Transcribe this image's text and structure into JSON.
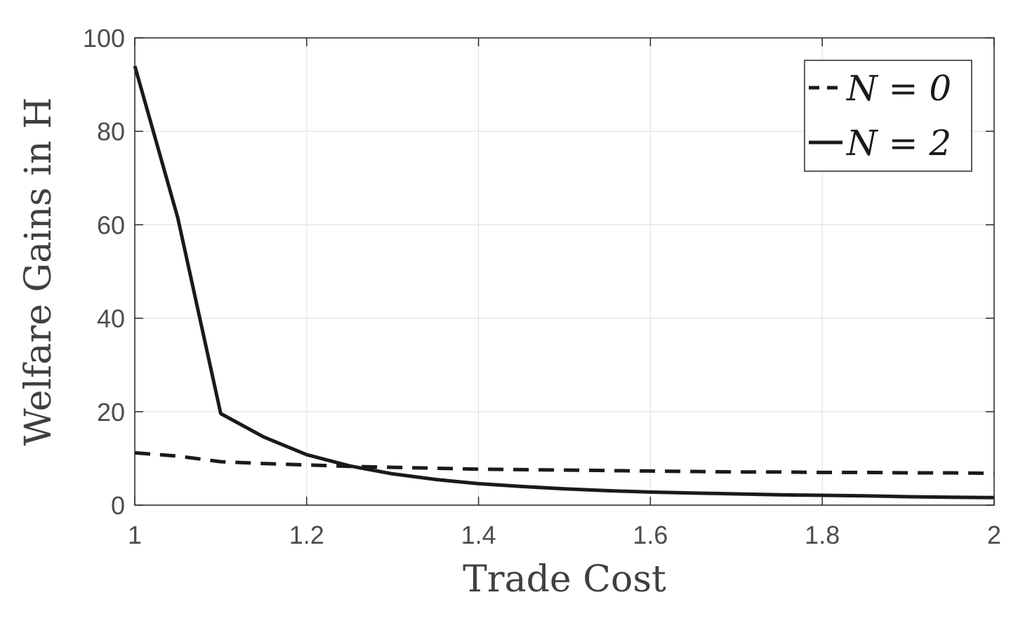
{
  "chart_data": {
    "type": "line",
    "xlabel": "Trade Cost",
    "ylabel": "Welfare Gains in H",
    "xlim": [
      1,
      2
    ],
    "ylim": [
      0,
      100
    ],
    "xticks": [
      "1",
      "1.2",
      "1.4",
      "1.6",
      "1.8",
      "2"
    ],
    "yticks": [
      "0",
      "20",
      "40",
      "60",
      "80",
      "100"
    ],
    "grid": true,
    "legend_position": "top-right",
    "series": [
      {
        "name": "N = 0",
        "style": "dashed",
        "color": "#1a1a1a",
        "x": [
          1.0,
          1.05,
          1.1,
          1.15,
          1.2,
          1.25,
          1.3,
          1.35,
          1.4,
          1.45,
          1.5,
          1.55,
          1.6,
          1.65,
          1.7,
          1.75,
          1.8,
          1.85,
          1.9,
          1.95,
          2.0
        ],
        "y": [
          11.2,
          10.5,
          9.3,
          8.9,
          8.6,
          8.3,
          8.1,
          7.9,
          7.7,
          7.6,
          7.5,
          7.4,
          7.3,
          7.2,
          7.1,
          7.1,
          7.0,
          7.0,
          6.9,
          6.9,
          6.8
        ]
      },
      {
        "name": "N = 2",
        "style": "solid",
        "color": "#1a1a1a",
        "x": [
          1.0,
          1.05,
          1.1,
          1.15,
          1.2,
          1.25,
          1.3,
          1.35,
          1.4,
          1.45,
          1.5,
          1.55,
          1.6,
          1.65,
          1.7,
          1.75,
          1.8,
          1.85,
          1.9,
          1.95,
          2.0
        ],
        "y": [
          94.0,
          61.5,
          19.6,
          14.6,
          10.8,
          8.4,
          6.7,
          5.5,
          4.6,
          4.0,
          3.5,
          3.1,
          2.8,
          2.6,
          2.4,
          2.2,
          2.1,
          2.0,
          1.8,
          1.7,
          1.6
        ]
      }
    ]
  }
}
